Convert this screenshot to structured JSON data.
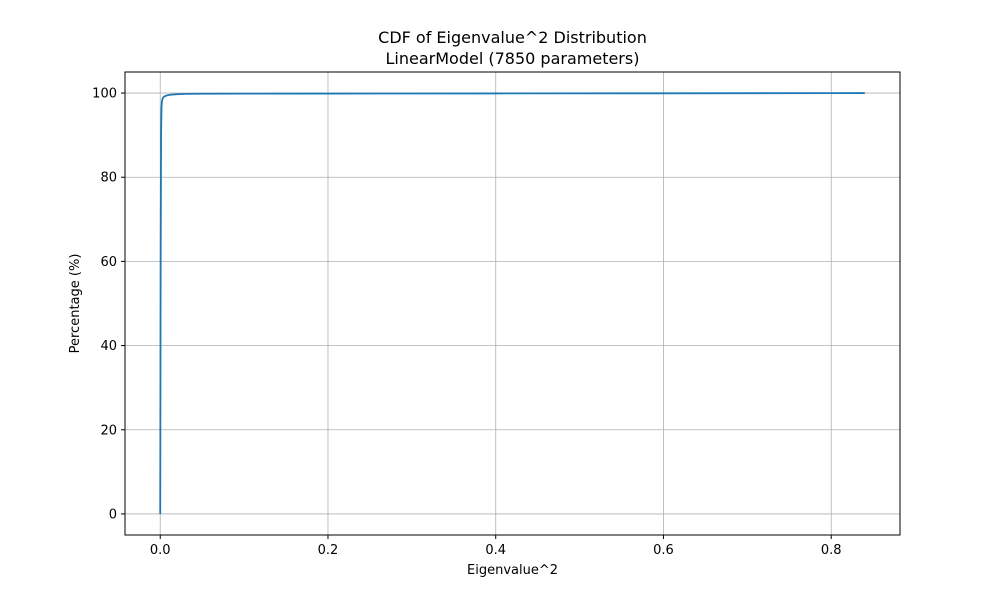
{
  "chart_data": {
    "type": "line",
    "title": "CDF of Eigenvalue^2 Distribution",
    "subtitle": "LinearModel (7850 parameters)",
    "xlabel": "Eigenvalue^2",
    "ylabel": "Percentage (%)",
    "xlim": [
      -0.042,
      0.882
    ],
    "ylim": [
      -5,
      105
    ],
    "x_ticks": [
      0.0,
      0.2,
      0.4,
      0.6,
      0.8
    ],
    "x_tick_labels": [
      "0.0",
      "0.2",
      "0.4",
      "0.6",
      "0.8"
    ],
    "y_ticks": [
      0,
      20,
      40,
      60,
      80,
      100
    ],
    "y_tick_labels": [
      "0",
      "20",
      "40",
      "60",
      "80",
      "100"
    ],
    "grid": true,
    "series": [
      {
        "color": "#1f77b4",
        "x": [
          0.0,
          0.0005,
          0.001,
          0.0015,
          0.002,
          0.003,
          0.005,
          0.008,
          0.012,
          0.02,
          0.03,
          0.05,
          0.1,
          0.2,
          0.4,
          0.6,
          0.8,
          0.84
        ],
        "y": [
          0.0,
          60.0,
          90.0,
          96.5,
          98.0,
          98.8,
          99.2,
          99.45,
          99.6,
          99.72,
          99.8,
          99.84,
          99.86,
          99.88,
          99.91,
          99.94,
          99.98,
          100.0
        ]
      }
    ]
  }
}
